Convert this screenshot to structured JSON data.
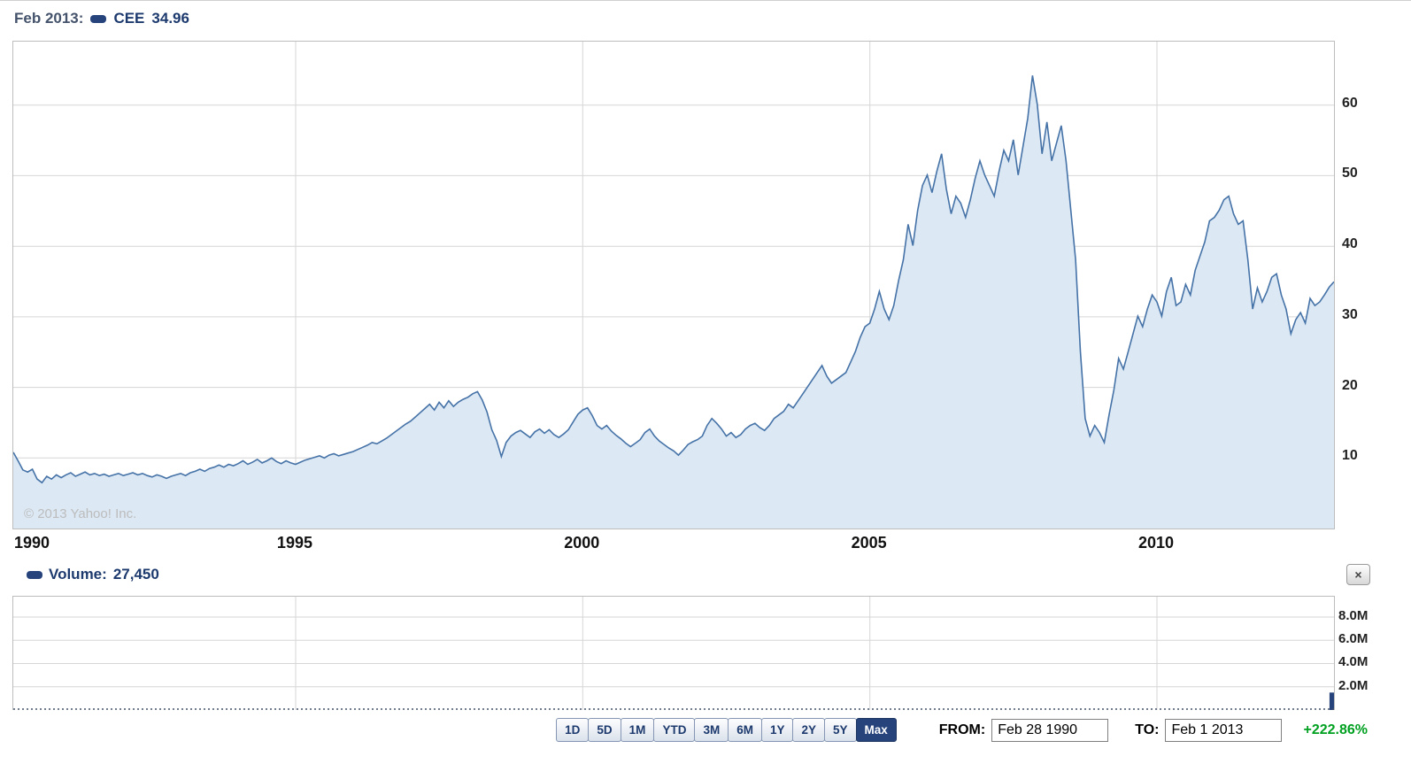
{
  "price_chart": {
    "legend": {
      "date_label": "Feb 2013:",
      "symbol": "CEE",
      "value": "34.96"
    },
    "copyright": "© 2013 Yahoo! Inc.",
    "y_tick_labels": [
      "10",
      "20",
      "30",
      "40",
      "50",
      "60"
    ],
    "x_tick_labels": [
      "1990",
      "1995",
      "2000",
      "2005",
      "2010"
    ]
  },
  "volume_chart": {
    "legend_label": "Volume:",
    "legend_value": "27,450",
    "close_glyph": "×",
    "y_tick_labels": [
      "2.0M",
      "4.0M",
      "6.0M",
      "8.0M"
    ]
  },
  "toolbar": {
    "ranges": [
      "1D",
      "5D",
      "1M",
      "YTD",
      "3M",
      "6M",
      "1Y",
      "2Y",
      "5Y",
      "Max"
    ],
    "active_range": "Max",
    "from_label": "FROM:",
    "from_value": "Feb 28 1990",
    "to_label": "TO:",
    "to_value": "Feb 1 2013",
    "change_pct": "+222.86%"
  },
  "colors": {
    "line": "#4572a7",
    "area_fill": "#dce8f4",
    "grid": "#d6d6d6",
    "pane_border": "#bdbdbd",
    "accent_navy": "#26437c",
    "legend_navy": "#1d3a6e",
    "legend_date": "#44536b",
    "active_button_bg": "#26437c",
    "button_text": "#1d3a6e",
    "button_border": "#8496b3",
    "gain_green": "#00a020",
    "copyright_gray": "#bcbcbc"
  },
  "chart_data": [
    {
      "type": "area",
      "title": "CEE monthly close, Feb 1990 - Feb 2013",
      "series_name": "CEE",
      "x_start": 1990.083,
      "x_step": 0.0833,
      "xlim": [
        1990.083,
        2013.083
      ],
      "ylim": [
        0,
        69
      ],
      "y_gridlines": [
        10,
        20,
        30,
        40,
        50,
        60
      ],
      "x_gridlines": [
        1995,
        2000,
        2005,
        2010
      ],
      "x_tick_years": [
        1990,
        1995,
        2000,
        2005,
        2010
      ],
      "grid": true,
      "legend_position": "top-left",
      "values": [
        10.8,
        9.6,
        8.3,
        8.0,
        8.4,
        7.0,
        6.5,
        7.4,
        7.0,
        7.6,
        7.2,
        7.6,
        7.9,
        7.4,
        7.7,
        8.0,
        7.6,
        7.8,
        7.5,
        7.7,
        7.4,
        7.6,
        7.8,
        7.5,
        7.7,
        7.9,
        7.6,
        7.8,
        7.5,
        7.3,
        7.6,
        7.4,
        7.1,
        7.4,
        7.6,
        7.8,
        7.5,
        7.9,
        8.1,
        8.4,
        8.1,
        8.5,
        8.7,
        9.0,
        8.7,
        9.1,
        8.9,
        9.2,
        9.6,
        9.1,
        9.4,
        9.8,
        9.3,
        9.6,
        10.0,
        9.5,
        9.2,
        9.6,
        9.3,
        9.1,
        9.4,
        9.7,
        9.9,
        10.1,
        10.3,
        10.0,
        10.4,
        10.6,
        10.3,
        10.5,
        10.7,
        10.9,
        11.2,
        11.5,
        11.8,
        12.2,
        12.0,
        12.4,
        12.8,
        13.3,
        13.8,
        14.3,
        14.8,
        15.2,
        15.8,
        16.4,
        17.0,
        17.6,
        16.8,
        17.9,
        17.1,
        18.1,
        17.3,
        17.9,
        18.3,
        18.6,
        19.1,
        19.4,
        18.2,
        16.5,
        14.0,
        12.5,
        10.2,
        12.2,
        13.1,
        13.6,
        13.9,
        13.4,
        12.9,
        13.7,
        14.1,
        13.5,
        14.0,
        13.3,
        12.9,
        13.4,
        14.0,
        15.1,
        16.2,
        16.8,
        17.1,
        16.0,
        14.6,
        14.1,
        14.6,
        13.8,
        13.2,
        12.7,
        12.1,
        11.6,
        12.1,
        12.6,
        13.6,
        14.1,
        13.1,
        12.4,
        11.9,
        11.4,
        11.0,
        10.4,
        11.1,
        11.9,
        12.3,
        12.6,
        13.1,
        14.6,
        15.6,
        14.9,
        14.1,
        13.1,
        13.6,
        12.9,
        13.3,
        14.1,
        14.6,
        14.9,
        14.3,
        13.9,
        14.6,
        15.6,
        16.1,
        16.6,
        17.6,
        17.1,
        18.1,
        19.1,
        20.1,
        21.1,
        22.1,
        23.1,
        21.6,
        20.6,
        21.1,
        21.6,
        22.1,
        23.6,
        25.1,
        27.1,
        28.6,
        29.1,
        31.1,
        33.6,
        31.1,
        29.6,
        31.6,
        35.1,
        38.1,
        43.1,
        40.1,
        45.1,
        48.6,
        50.1,
        47.6,
        50.6,
        53.1,
        48.1,
        44.6,
        47.1,
        46.1,
        44.1,
        46.6,
        49.6,
        52.1,
        50.1,
        48.6,
        47.1,
        50.6,
        53.6,
        52.1,
        55.1,
        50.1,
        54.1,
        58.1,
        64.2,
        60.1,
        53.1,
        57.6,
        52.1,
        54.6,
        57.1,
        52.1,
        45.1,
        38.1,
        25.1,
        15.6,
        13.1,
        14.6,
        13.6,
        12.2,
        16.1,
        19.6,
        24.1,
        22.6,
        25.1,
        27.6,
        30.1,
        28.6,
        31.1,
        33.1,
        32.1,
        30.1,
        33.6,
        35.6,
        31.6,
        32.1,
        34.6,
        33.1,
        36.6,
        38.6,
        40.6,
        43.6,
        44.1,
        45.1,
        46.6,
        47.1,
        44.6,
        43.1,
        43.6,
        38.1,
        31.1,
        34.1,
        32.1,
        33.6,
        35.6,
        36.1,
        33.1,
        31.1,
        27.6,
        29.6,
        30.6,
        29.1,
        32.6,
        31.6,
        32.1,
        33.1,
        34.2,
        34.96
      ]
    },
    {
      "type": "bar",
      "title": "Volume",
      "series_name": "Volume",
      "current_value": 27450,
      "xlim": [
        1990.083,
        2013.083
      ],
      "ylim": [
        0,
        9750000
      ],
      "y_gridlines": [
        2000000,
        4000000,
        6000000,
        8000000
      ],
      "y_tick_labels": [
        "2.0M",
        "4.0M",
        "6.0M",
        "8.0M"
      ],
      "x_gridlines": [
        1995,
        2000,
        2005,
        2010
      ],
      "grid": true,
      "bars": [
        {
          "x": 2013.05,
          "value": 1500000
        }
      ]
    }
  ]
}
